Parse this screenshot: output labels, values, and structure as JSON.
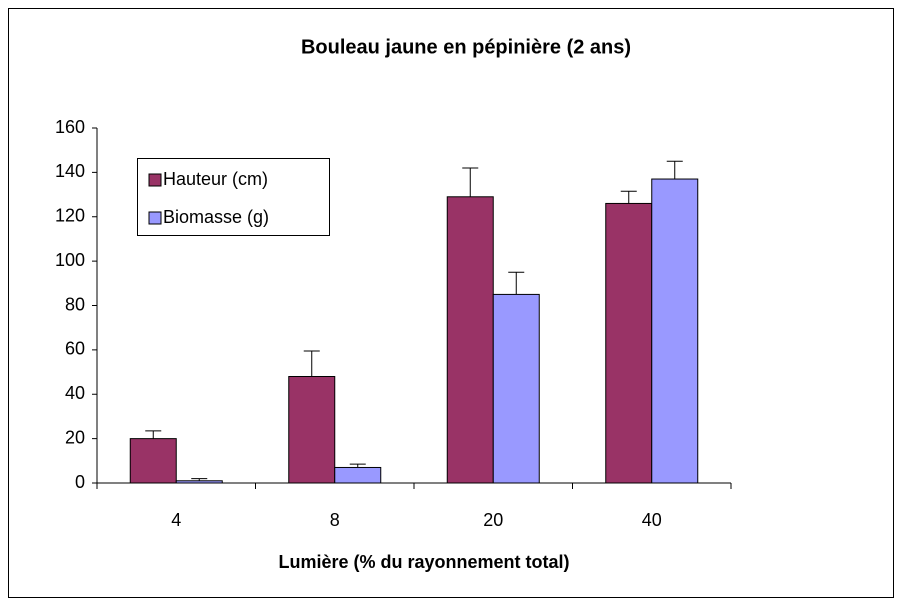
{
  "chart_data": {
    "type": "bar",
    "title": "Bouleau jaune en pépinière (2 ans)",
    "x_label": "Lumière (% du rayonnement total)",
    "categories": [
      "4",
      "8",
      "20",
      "40"
    ],
    "series": [
      {
        "name": "Hauteur (cm)",
        "color": "#993366",
        "values": [
          20,
          48,
          129,
          126
        ],
        "errors": [
          3.5,
          11.5,
          13,
          5.5
        ]
      },
      {
        "name": "Biomasse (g)",
        "color": "#9999ff",
        "values": [
          1,
          7,
          85,
          137
        ],
        "errors": [
          1,
          1.5,
          10,
          8
        ]
      }
    ],
    "ylim": [
      0,
      160
    ],
    "yticks": [
      0,
      20,
      40,
      60,
      80,
      100,
      120,
      140,
      160
    ],
    "grid": false
  }
}
